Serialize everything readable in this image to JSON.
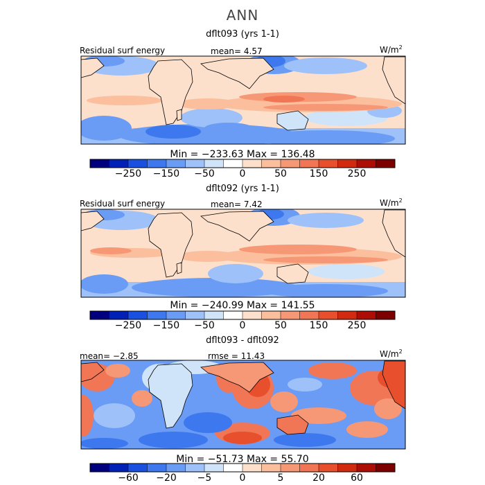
{
  "header": {
    "title": "ANN"
  },
  "chart_data": [
    {
      "type": "heatmap",
      "title": "dflt093 (yrs 1-1)",
      "left_label": "Residual surf energy",
      "center_label": "mean=   4.57",
      "units": "W/m",
      "units_sup": "2",
      "min_max": "Min = −233.63 Max = 136.48",
      "min": -233.63,
      "max": 136.48,
      "mean": 4.57,
      "colorbar": {
        "colors": [
          "#00007e",
          "#0020b6",
          "#1a50df",
          "#3d78ee",
          "#6a9cf5",
          "#9dc1f8",
          "#cfe3f9",
          "#ffffff",
          "#fde0cc",
          "#fbbf9d",
          "#f69876",
          "#f07655",
          "#e84f2c",
          "#d22a0e",
          "#ac0d04",
          "#7d0000"
        ],
        "tick_labels": [
          "−250",
          "−150",
          "−50",
          "0",
          "50",
          "150",
          "250"
        ]
      }
    },
    {
      "type": "heatmap",
      "title": "dflt092 (yrs 1-1)",
      "left_label": "Residual surf energy",
      "center_label": "mean=   7.42",
      "units": "W/m",
      "units_sup": "2",
      "min_max": "Min = −240.99 Max = 141.55",
      "min": -240.99,
      "max": 141.55,
      "mean": 7.42,
      "colorbar": {
        "colors": [
          "#00007e",
          "#0020b6",
          "#1a50df",
          "#3d78ee",
          "#6a9cf5",
          "#9dc1f8",
          "#cfe3f9",
          "#ffffff",
          "#fde0cc",
          "#fbbf9d",
          "#f69876",
          "#f07655",
          "#e84f2c",
          "#d22a0e",
          "#ac0d04",
          "#7d0000"
        ],
        "tick_labels": [
          "−250",
          "−150",
          "−50",
          "0",
          "50",
          "150",
          "250"
        ]
      }
    },
    {
      "type": "heatmap",
      "title": "dflt093 - dflt092",
      "left_label": "mean=  −2.85",
      "center_label": "rmse =  11.43",
      "units": "W/m",
      "units_sup": "2",
      "min_max": "Min = −51.73 Max =  55.70",
      "min": -51.73,
      "max": 55.7,
      "mean": -2.85,
      "rmse": 11.43,
      "colorbar": {
        "colors": [
          "#00007e",
          "#0020b6",
          "#1a50df",
          "#3d78ee",
          "#6a9cf5",
          "#9dc1f8",
          "#cfe3f9",
          "#ffffff",
          "#fde0cc",
          "#fbbf9d",
          "#f69876",
          "#f07655",
          "#e84f2c",
          "#d22a0e",
          "#ac0d04",
          "#7d0000"
        ],
        "tick_labels": [
          "−60",
          "−20",
          "−5",
          "0",
          "5",
          "20",
          "60"
        ]
      }
    }
  ]
}
